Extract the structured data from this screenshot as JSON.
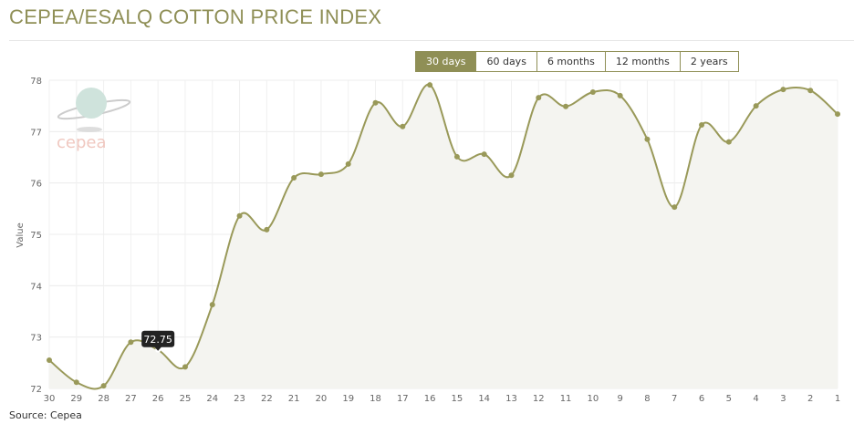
{
  "title": "CEPEA/ESALQ COTTON PRICE INDEX",
  "ranges": [
    {
      "label": "30 days",
      "active": true
    },
    {
      "label": "60 days"
    },
    {
      "label": "6 months"
    },
    {
      "label": "12 months"
    },
    {
      "label": "2 years"
    }
  ],
  "source": "Source: Cepea",
  "logo_text": "cepea",
  "colors": {
    "accent": "#8f8f56",
    "line": "#999959",
    "fill": "#f4f4f0"
  },
  "chart_data": {
    "type": "area",
    "ylabel": "Value",
    "ylim": [
      72,
      78
    ],
    "yticks": [
      72,
      73,
      74,
      75,
      76,
      77,
      78
    ],
    "grid": true,
    "categories": [
      "30",
      "29",
      "28",
      "27",
      "26",
      "25",
      "24",
      "23",
      "22",
      "21",
      "20",
      "19",
      "18",
      "17",
      "16",
      "15",
      "14",
      "13",
      "12",
      "11",
      "10",
      "9",
      "8",
      "7",
      "6",
      "5",
      "4",
      "3",
      "2",
      "1"
    ],
    "values": [
      72.55,
      72.12,
      72.05,
      72.9,
      72.75,
      72.42,
      73.63,
      75.36,
      75.09,
      76.1,
      76.17,
      76.37,
      77.56,
      77.1,
      77.91,
      76.51,
      76.56,
      76.15,
      77.66,
      77.49,
      77.77,
      77.7,
      76.85,
      75.53,
      77.13,
      76.8,
      77.5,
      77.82,
      77.8,
      77.34
    ],
    "tooltip": {
      "category": "26",
      "label": "72.75"
    }
  }
}
